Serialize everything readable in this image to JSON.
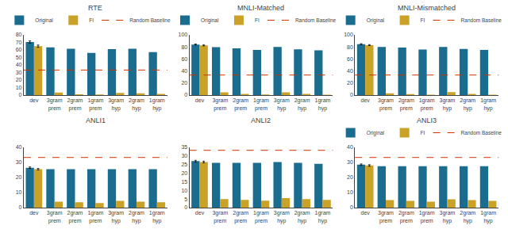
{
  "chart_data": [
    {
      "type": "bar",
      "title": "RTE",
      "categories": [
        "dev",
        "3gram\nprem",
        "2gram\nprem",
        "1gram\nprem",
        "3gram\nhyp",
        "2gram\nhyp",
        "1gram\nhyp"
      ],
      "series": [
        {
          "name": "Original",
          "color": "#1a6d8e",
          "values": [
            70.5,
            63.5,
            61.5,
            56.0,
            61.0,
            61.5,
            57.0
          ],
          "errors": [
            1.5,
            null,
            null,
            null,
            null,
            null,
            null
          ]
        },
        {
          "name": "FI",
          "color": "#c9a227",
          "values": [
            65.0,
            3.5,
            1.0,
            0.8,
            3.0,
            2.5,
            1.5
          ],
          "errors": [
            1.5,
            null,
            null,
            null,
            null,
            null,
            null
          ]
        },
        {
          "name": "Random Baseline",
          "type": "hline",
          "color": "#cc3300",
          "line_style": "dashed",
          "value": 33.3
        }
      ],
      "ylim": [
        0,
        80
      ],
      "yticks": [
        0,
        10,
        20,
        30,
        40,
        50,
        60,
        70,
        80
      ],
      "grid": false,
      "legend": "top"
    },
    {
      "type": "bar",
      "title": "MNLI-Matched",
      "categories": [
        "dev",
        "3gram\nprem",
        "2gram\nprem",
        "1gram\nprem",
        "3gram\nhyp",
        "2gram\nhyp",
        "1gram\nhyp"
      ],
      "series": [
        {
          "name": "Original",
          "color": "#1a6d8e",
          "values": [
            84.0,
            79.5,
            77.5,
            75.0,
            80.0,
            76.0,
            74.5
          ],
          "errors": [
            0.8,
            null,
            null,
            null,
            null,
            null,
            null
          ]
        },
        {
          "name": "FI",
          "color": "#c9a227",
          "values": [
            82.5,
            4.5,
            2.0,
            1.0,
            4.5,
            2.0,
            0.8
          ],
          "errors": [
            0.8,
            null,
            null,
            null,
            null,
            null,
            null
          ]
        },
        {
          "name": "Random Baseline",
          "type": "hline",
          "color": "#cc3300",
          "line_style": "dashed",
          "value": 33.3
        }
      ],
      "ylim": [
        0,
        100
      ],
      "yticks": [
        0,
        20,
        40,
        60,
        80,
        100
      ],
      "grid": false,
      "legend": "top"
    },
    {
      "type": "bar",
      "title": "MNLI-Mismatched",
      "categories": [
        "dev",
        "3gram\nprem",
        "2gram\nprem",
        "1gram\nprem",
        "3gram\nhyp",
        "2gram\nhyp",
        "1gram\nhyp"
      ],
      "series": [
        {
          "name": "Original",
          "color": "#1a6d8e",
          "values": [
            84.5,
            80.0,
            79.0,
            75.5,
            80.0,
            76.5,
            75.0
          ],
          "errors": [
            0.8,
            null,
            null,
            null,
            null,
            null,
            null
          ]
        },
        {
          "name": "FI",
          "color": "#c9a227",
          "values": [
            83.0,
            3.0,
            1.5,
            0.8,
            5.0,
            2.0,
            0.8
          ],
          "errors": [
            0.8,
            null,
            null,
            null,
            null,
            null,
            null
          ]
        },
        {
          "name": "Random Baseline",
          "type": "hline",
          "color": "#cc3300",
          "line_style": "dashed",
          "value": 33.3
        }
      ],
      "ylim": [
        0,
        100
      ],
      "yticks": [
        0,
        20,
        40,
        60,
        80,
        100
      ],
      "grid": false,
      "legend": "top"
    },
    {
      "type": "bar",
      "title": "ANLI1",
      "categories": [
        "dev",
        "3gram\nprem",
        "2gram\nprem",
        "1gram\nprem",
        "3gram\nhyp",
        "2gram\nhyp",
        "1gram\nhyp"
      ],
      "series": [
        {
          "name": "Original",
          "color": "#1a6d8e",
          "values": [
            26.5,
            25.5,
            25.5,
            25.5,
            25.5,
            25.5,
            25.5
          ],
          "errors": [
            0.5,
            null,
            null,
            null,
            null,
            null,
            null
          ]
        },
        {
          "name": "FI",
          "color": "#c9a227",
          "values": [
            25.5,
            4.0,
            3.5,
            3.0,
            4.5,
            4.0,
            3.5
          ],
          "errors": [
            0.5,
            null,
            null,
            null,
            null,
            null,
            null
          ]
        },
        {
          "name": "Random Baseline",
          "type": "hline",
          "color": "#cc3300",
          "line_style": "dashed",
          "value": 33.3
        }
      ],
      "ylim": [
        0,
        40
      ],
      "yticks": [
        0,
        10,
        20,
        30,
        40
      ],
      "grid": false,
      "legend": false
    },
    {
      "type": "bar",
      "title": "ANLI2",
      "categories": [
        "dev",
        "3gram\nprem",
        "2gram\nprem",
        "1gram\nprem",
        "3gram\nhyp",
        "2gram\nhyp",
        "1gram\nhyp"
      ],
      "series": [
        {
          "name": "Original",
          "color": "#1a6d8e",
          "values": [
            27.0,
            26.0,
            26.0,
            26.0,
            26.5,
            26.0,
            25.5
          ],
          "errors": [
            0.5,
            null,
            null,
            null,
            null,
            null,
            null
          ]
        },
        {
          "name": "FI",
          "color": "#c9a227",
          "values": [
            26.5,
            5.0,
            4.5,
            4.0,
            5.5,
            5.0,
            4.5
          ],
          "errors": [
            0.5,
            null,
            null,
            null,
            null,
            null,
            null
          ]
        },
        {
          "name": "Random Baseline",
          "type": "hline",
          "color": "#cc3300",
          "line_style": "dashed",
          "value": 33.3
        }
      ],
      "ylim": [
        0,
        35
      ],
      "yticks": [
        0,
        5,
        10,
        15,
        20,
        25,
        30,
        35
      ],
      "grid": false,
      "legend": false
    },
    {
      "type": "bar",
      "title": "ANLI3",
      "categories": [
        "dev",
        "3gram\nprem",
        "2gram\nprem",
        "1gram\nprem",
        "3gram\nhyp",
        "2gram\nhyp",
        "1gram\nhyp"
      ],
      "series": [
        {
          "name": "Original",
          "color": "#1a6d8e",
          "values": [
            28.5,
            27.5,
            27.5,
            27.5,
            27.5,
            27.5,
            27.5
          ],
          "errors": [
            0.5,
            null,
            null,
            null,
            null,
            null,
            null
          ]
        },
        {
          "name": "FI",
          "color": "#c9a227",
          "values": [
            28.0,
            5.0,
            4.5,
            4.0,
            5.5,
            5.0,
            4.5
          ],
          "errors": [
            0.5,
            null,
            null,
            null,
            null,
            null,
            null
          ]
        },
        {
          "name": "Random Baseline",
          "type": "hline",
          "color": "#cc3300",
          "line_style": "dashed",
          "value": 33.3
        }
      ],
      "ylim": [
        0,
        40
      ],
      "yticks": [
        0,
        10,
        20,
        30,
        40
      ],
      "grid": false,
      "legend": "top"
    }
  ]
}
